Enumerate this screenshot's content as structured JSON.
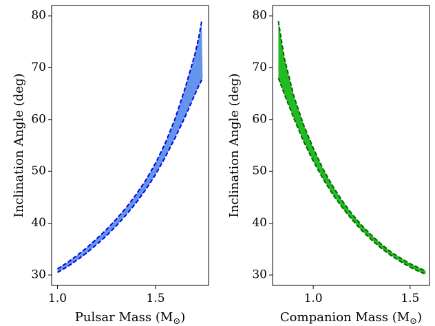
{
  "chart_data": [
    {
      "type": "area",
      "xlabel": "Pulsar Mass (M",
      "xlabel_sub": "⊙",
      "xlabel_close": ")",
      "ylabel": "Inclination Angle (deg)",
      "xlim": [
        0.97,
        1.77
      ],
      "ylim": [
        28,
        82
      ],
      "xticks": [
        1.0,
        1.5
      ],
      "yticks": [
        30,
        40,
        50,
        60,
        70,
        80
      ],
      "fill_color": "#6495ed",
      "line_color": "#0000dd",
      "x_upper": [
        1.0,
        1.05,
        1.1,
        1.15,
        1.2,
        1.25,
        1.3,
        1.35,
        1.4,
        1.45,
        1.5,
        1.55,
        1.6,
        1.65,
        1.7,
        1.72,
        1.735
      ],
      "y_upper": [
        31.2,
        32.4,
        33.8,
        35.3,
        37.0,
        38.8,
        40.8,
        43.0,
        45.5,
        48.3,
        51.6,
        55.5,
        60.2,
        66.0,
        72.5,
        75.8,
        79.0
      ],
      "x_lower": [
        1.0,
        1.05,
        1.1,
        1.15,
        1.2,
        1.25,
        1.3,
        1.35,
        1.4,
        1.45,
        1.5,
        1.55,
        1.6,
        1.65,
        1.7,
        1.72,
        1.74
      ],
      "y_lower": [
        30.5,
        31.6,
        32.9,
        34.3,
        35.9,
        37.6,
        39.5,
        41.6,
        43.9,
        46.5,
        49.4,
        52.8,
        56.5,
        60.5,
        64.8,
        66.5,
        68.0
      ]
    },
    {
      "type": "area",
      "xlabel": "Companion Mass (M",
      "xlabel_sub": "⊙",
      "xlabel_close": ")",
      "ylabel": "Inclination Angle (deg)",
      "xlim": [
        0.79,
        1.6
      ],
      "ylim": [
        28,
        82
      ],
      "xticks": [
        1.0,
        1.5
      ],
      "yticks": [
        30,
        40,
        50,
        60,
        70,
        80
      ],
      "fill_color": "#22bb22",
      "line_color": "#006400",
      "x_upper": [
        0.82,
        0.85,
        0.9,
        0.95,
        1.0,
        1.05,
        1.1,
        1.15,
        1.2,
        1.25,
        1.3,
        1.35,
        1.4,
        1.45,
        1.5,
        1.55,
        1.58
      ],
      "y_upper": [
        79.0,
        72.0,
        64.5,
        59.0,
        54.5,
        50.5,
        47.2,
        44.3,
        41.8,
        39.6,
        37.7,
        36.0,
        34.5,
        33.3,
        32.2,
        31.3,
        30.8
      ],
      "x_lower": [
        0.82,
        0.85,
        0.9,
        0.95,
        1.0,
        1.05,
        1.1,
        1.15,
        1.2,
        1.25,
        1.3,
        1.35,
        1.4,
        1.45,
        1.5,
        1.55,
        1.58
      ],
      "y_lower": [
        68.0,
        65.0,
        60.2,
        55.8,
        52.0,
        48.6,
        45.6,
        43.0,
        40.7,
        38.6,
        36.8,
        35.2,
        33.8,
        32.6,
        31.5,
        30.6,
        30.2
      ]
    }
  ]
}
